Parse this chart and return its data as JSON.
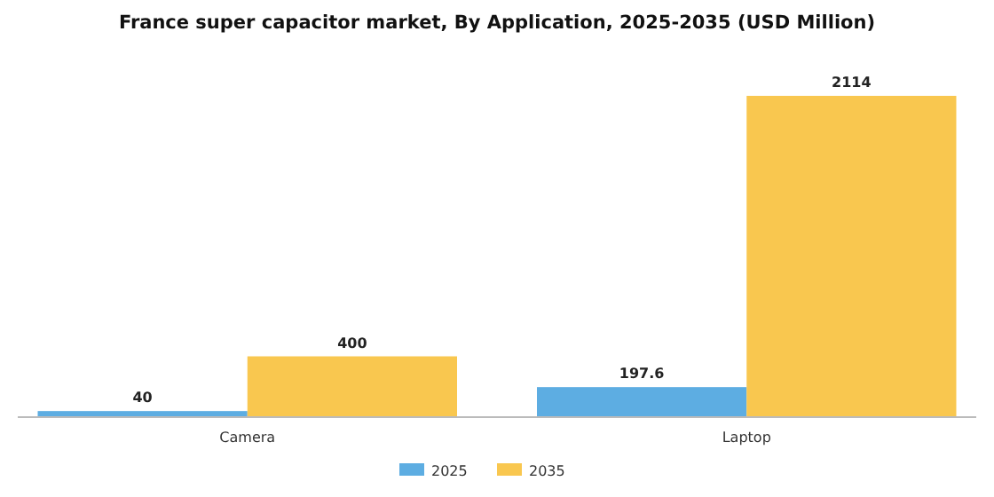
{
  "chart_data": {
    "type": "bar",
    "title": "France super capacitor market, By Application, 2025-2035 (USD Million)",
    "categories": [
      "Camera",
      "Laptop"
    ],
    "series": [
      {
        "name": "2025",
        "color": "#5dade2",
        "values": [
          40,
          197.6
        ]
      },
      {
        "name": "2035",
        "color": "#f9c74f",
        "values": [
          400,
          2114
        ]
      }
    ],
    "data_labels": true,
    "legend": "bottom"
  }
}
